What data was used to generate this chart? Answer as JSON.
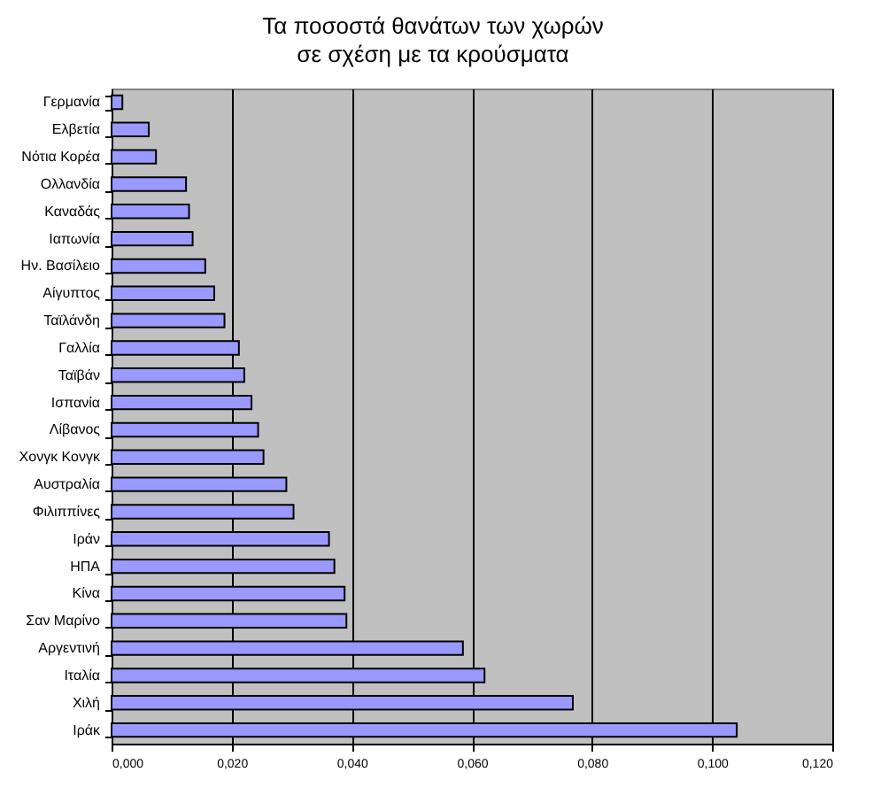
{
  "chart_data": {
    "type": "bar",
    "orientation": "horizontal",
    "title": "Τα ποσοστά θανάτων των χωρών\nσε σχέση με τα κρούσματα",
    "categories": [
      "Γερμανία",
      "Ελβετία",
      "Νότια Κορέα",
      "Ολλανδία",
      "Καναδάς",
      "Ιαπωνία",
      "Ην. Βασίλειο",
      "Αίγυπτος",
      "Ταϊλάνδη",
      "Γαλλία",
      "Ταϊβάν",
      "Ισπανία",
      "Λίβανος",
      "Χονγκ Κονγκ",
      "Αυστραλία",
      "Φιλιππίνες",
      "Ιράν",
      "ΗΠΑ",
      "Κίνα",
      "Σαν Μαρίνο",
      "Αργεντινή",
      "Ιταλία",
      "Χιλή",
      "Ιράκ"
    ],
    "values": [
      0.0018,
      0.0062,
      0.0074,
      0.0124,
      0.0129,
      0.0135,
      0.0156,
      0.0171,
      0.0188,
      0.0212,
      0.0221,
      0.0233,
      0.0244,
      0.0253,
      0.0291,
      0.0303,
      0.0362,
      0.0371,
      0.0388,
      0.0391,
      0.0585,
      0.0621,
      0.0768,
      0.1041
    ],
    "color": "#9999ff",
    "xlim": [
      0,
      0.12
    ],
    "xticks": [
      {
        "value": 0,
        "label": "0,000"
      },
      {
        "value": 0.02,
        "label": "0,020"
      },
      {
        "value": 0.04,
        "label": "0,040"
      },
      {
        "value": 0.06,
        "label": "0,060"
      },
      {
        "value": 0.08,
        "label": "0,080"
      },
      {
        "value": 0.1,
        "label": "0,100"
      },
      {
        "value": 0.12,
        "label": "0,120"
      }
    ],
    "grid": "x"
  }
}
